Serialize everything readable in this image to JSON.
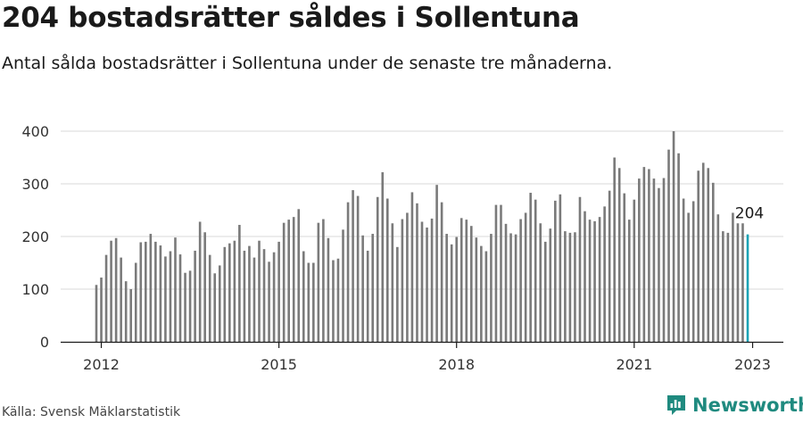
{
  "header": {
    "title": "204 bostadsrätter såldes i Sollentuna",
    "subtitle": "Antal sålda bostadsrätter i Sollentuna under de senaste tre månaderna."
  },
  "footer": {
    "source": "Källa: Svensk Mäklarstatistik",
    "brand": "Newsworthy"
  },
  "colors": {
    "bar": "#7a7a7a",
    "highlight": "#1ba2b5",
    "grid": "#d9d9d9",
    "axis": "#1a1a1a",
    "brand": "#1f8a7f"
  },
  "chart_data": {
    "type": "bar",
    "title": "204 bostadsrätter såldes i Sollentuna",
    "subtitle": "Antal sålda bostadsrätter i Sollentuna under de senaste tre månaderna.",
    "x_start": "2011-12",
    "interval": "month",
    "xticks": [
      "2012",
      "2015",
      "2018",
      "2021",
      "2023"
    ],
    "yticks": [
      0,
      100,
      200,
      300,
      400
    ],
    "ylim": [
      0,
      400
    ],
    "grid": true,
    "highlight_last": true,
    "annotation": {
      "text": "204",
      "value": 204
    },
    "values": [
      108,
      122,
      165,
      192,
      197,
      160,
      115,
      100,
      150,
      189,
      190,
      205,
      190,
      183,
      162,
      172,
      198,
      166,
      131,
      135,
      173,
      228,
      208,
      165,
      130,
      145,
      180,
      187,
      192,
      222,
      173,
      182,
      160,
      192,
      176,
      152,
      170,
      190,
      226,
      232,
      237,
      252,
      172,
      150,
      150,
      226,
      233,
      197,
      155,
      158,
      213,
      265,
      288,
      277,
      202,
      173,
      205,
      275,
      322,
      272,
      225,
      180,
      233,
      245,
      284,
      263,
      228,
      217,
      234,
      298,
      265,
      205,
      185,
      199,
      235,
      232,
      220,
      198,
      182,
      172,
      205,
      260,
      260,
      224,
      206,
      204,
      233,
      245,
      283,
      270,
      225,
      190,
      215,
      268,
      280,
      210,
      207,
      208,
      275,
      248,
      232,
      229,
      237,
      257,
      287,
      350,
      330,
      282,
      232,
      270,
      310,
      332,
      328,
      310,
      292,
      311,
      365,
      400,
      358,
      272,
      245,
      267,
      325,
      340,
      330,
      302,
      242,
      210,
      207,
      245,
      225,
      225,
      204
    ]
  }
}
